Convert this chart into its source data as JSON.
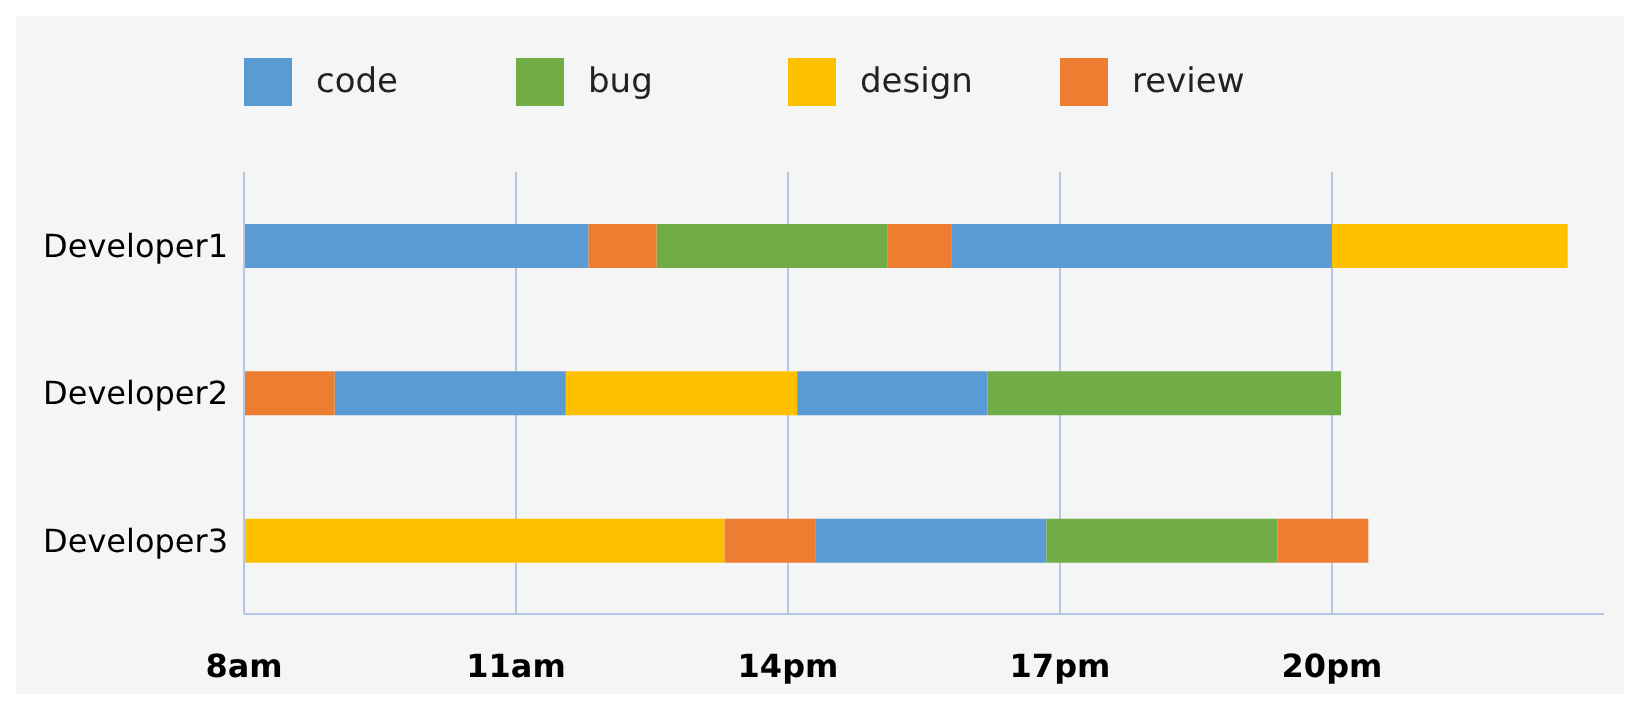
{
  "chart_data": {
    "type": "bar",
    "orientation": "horizontal",
    "categories": [
      "Developer1",
      "Developer2",
      "Developer3"
    ],
    "series": [
      {
        "name": "code",
        "color": "#5b9bd5",
        "values": [
          3.8,
          2.55,
          2.55
        ],
        "base": [
          8,
          9,
          14.3
        ]
      },
      {
        "color": "#5b9bd5",
        "values": [
          4.2,
          2.1,
          null
        ],
        "base": [
          15.8,
          14.1,
          null
        ]
      },
      {
        "name": "bug",
        "color": "#70ad47",
        "values": [
          2.55,
          3.9,
          2.55
        ],
        "base": [
          12.55,
          16.2,
          16.85
        ]
      },
      {
        "name": "design",
        "color": "#ffc000",
        "values": [
          2.6,
          2.55,
          5.3
        ],
        "base": [
          20,
          11.55,
          8
        ]
      },
      {
        "name": "review",
        "color": "#ed7d31",
        "values": [
          0.75,
          1,
          1
        ],
        "base": [
          11.8,
          8,
          13.3
        ]
      },
      {
        "color": "#ed7d31",
        "values": [
          0.7,
          null,
          1
        ],
        "base": [
          15.1,
          null,
          19.4
        ]
      }
    ],
    "xlim": [
      8,
      23
    ],
    "xticks": [
      {
        "value": 8,
        "label": "8am"
      },
      {
        "value": 11,
        "label": "11am"
      },
      {
        "value": 14,
        "label": "14pm"
      },
      {
        "value": 17,
        "label": "17pm"
      },
      {
        "value": 20,
        "label": "20pm"
      }
    ],
    "grid": "x",
    "legend": "top"
  }
}
